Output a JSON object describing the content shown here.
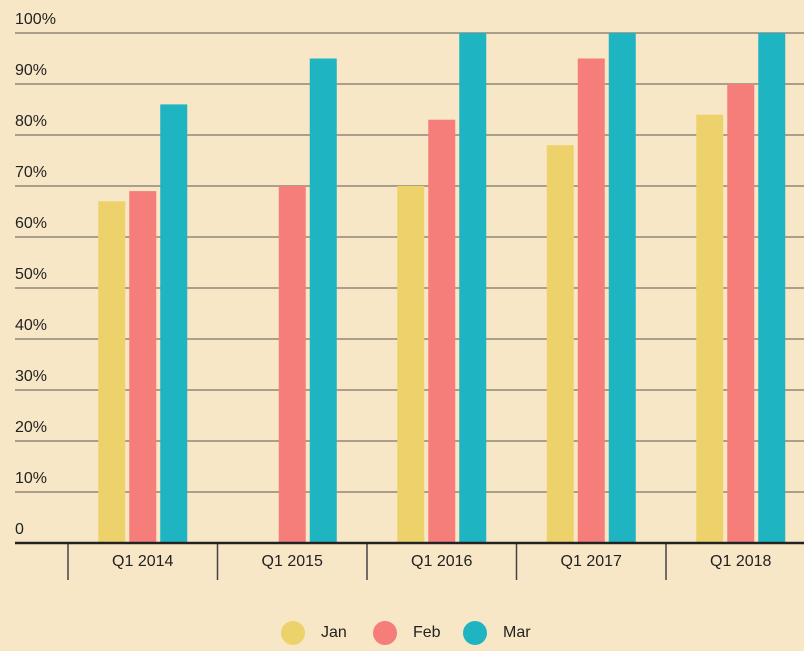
{
  "chart_data": {
    "type": "bar",
    "categories": [
      "Q1 2014",
      "Q1 2015",
      "Q1 2016",
      "Q1 2017",
      "Q1 2018"
    ],
    "series": [
      {
        "name": "Jan",
        "color": "#edd26b",
        "values": [
          67,
          null,
          70,
          78,
          84
        ]
      },
      {
        "name": "Feb",
        "color": "#f57e7b",
        "values": [
          69,
          70,
          83,
          95,
          90
        ]
      },
      {
        "name": "Mar",
        "color": "#1eb4c2",
        "values": [
          86,
          95,
          100,
          100,
          100
        ]
      }
    ],
    "ylim": [
      0,
      100
    ],
    "yticks": [
      0,
      {
        "value": 10,
        "label": "10%"
      },
      {
        "value": 20,
        "label": "20%"
      },
      {
        "value": 30,
        "label": "30%"
      },
      {
        "value": 40,
        "label": "40%"
      },
      {
        "value": 50,
        "label": "50%"
      },
      {
        "value": 60,
        "label": "60%"
      },
      {
        "value": 70,
        "label": "70%"
      },
      {
        "value": 80,
        "label": "80%"
      },
      {
        "value": 90,
        "label": "90%"
      },
      {
        "value": 100,
        "label": "100%"
      }
    ],
    "grid": true,
    "legend": "bottom"
  }
}
